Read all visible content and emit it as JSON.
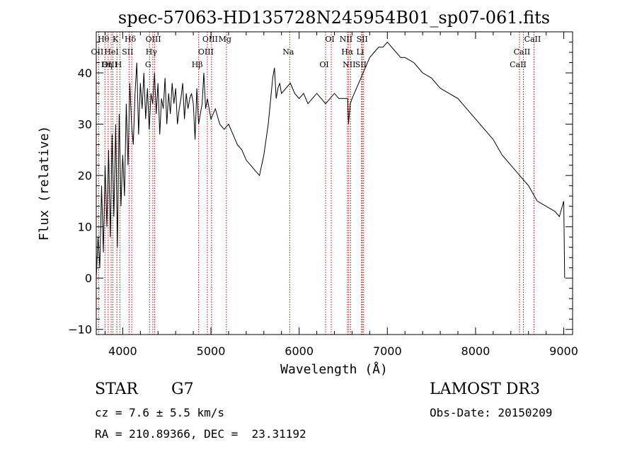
{
  "chart_data": {
    "type": "line",
    "title": "spec-57063-HD135728N245954B01_sp07-061.fits",
    "xlabel": "Wavelength (Å)",
    "ylabel": "Flux (relative)",
    "xlim": [
      3700,
      9100
    ],
    "ylim": [
      -11,
      48
    ],
    "xticks": [
      4000,
      5000,
      6000,
      7000,
      8000,
      9000
    ],
    "yticks": [
      -10,
      0,
      10,
      20,
      30,
      40
    ],
    "grid": false,
    "series": [
      {
        "x": [
          3700,
          3720,
          3740,
          3760,
          3780,
          3800,
          3820,
          3840,
          3860,
          3880,
          3900,
          3920,
          3940,
          3960,
          3980,
          4000,
          4020,
          4040,
          4060,
          4080,
          4100,
          4120,
          4140,
          4160,
          4180,
          4200,
          4220,
          4240,
          4260,
          4280,
          4300,
          4320,
          4340,
          4360,
          4380,
          4400,
          4420,
          4440,
          4460,
          4480,
          4500,
          4520,
          4540,
          4560,
          4580,
          4600,
          4620,
          4640,
          4660,
          4680,
          4700,
          4720,
          4740,
          4760,
          4780,
          4800,
          4820,
          4840,
          4860,
          4880,
          4900,
          4920,
          4940,
          4960,
          4980,
          5000,
          5050,
          5100,
          5150,
          5200,
          5250,
          5300,
          5350,
          5400,
          5450,
          5500,
          5550,
          5600,
          5650,
          5700,
          5720,
          5740,
          5760,
          5780,
          5800,
          5850,
          5900,
          5950,
          6000,
          6050,
          6100,
          6150,
          6200,
          6250,
          6300,
          6350,
          6400,
          6450,
          6500,
          6550,
          6560,
          6580,
          6600,
          6650,
          6700,
          6750,
          6800,
          6850,
          6900,
          6950,
          7000,
          7050,
          7100,
          7150,
          7200,
          7300,
          7400,
          7500,
          7600,
          7700,
          7800,
          7900,
          8000,
          8100,
          8200,
          8300,
          8400,
          8500,
          8600,
          8700,
          8800,
          8900,
          8950,
          9000,
          9010
        ],
        "values": [
          0,
          8,
          2,
          18,
          5,
          22,
          10,
          25,
          8,
          28,
          12,
          30,
          6,
          32,
          14,
          24,
          16,
          34,
          22,
          38,
          30,
          26,
          36,
          42,
          28,
          38,
          33,
          40,
          31,
          37,
          29,
          36,
          34,
          40,
          32,
          38,
          28,
          35,
          33,
          39,
          30,
          36,
          32,
          38,
          34,
          37,
          30,
          33,
          35,
          38,
          31,
          36,
          33,
          35,
          36,
          34,
          27,
          37,
          30,
          32,
          34,
          40,
          33,
          35,
          33,
          31,
          33,
          30,
          29,
          30,
          28,
          26,
          25,
          23,
          22,
          21,
          20,
          24,
          30,
          39,
          41,
          35,
          37,
          38,
          36,
          37,
          38,
          36,
          35,
          36,
          34,
          35,
          36,
          35,
          34,
          35,
          36,
          35,
          35,
          35,
          30,
          34,
          35,
          37,
          39,
          41,
          43,
          44,
          45,
          45,
          46,
          45,
          44,
          43,
          43,
          42,
          40,
          39,
          37,
          36,
          35,
          33,
          31,
          29,
          27,
          24,
          22,
          20,
          18,
          15,
          14,
          13,
          12,
          15,
          0
        ]
      }
    ],
    "annotations": [
      {
        "label": "Hθ",
        "x": 3798
      },
      {
        "label": "OII",
        "x": 3727
      },
      {
        "label": "OIII",
        "x": 3869
      },
      {
        "label": "K",
        "x": 3934
      },
      {
        "label": "HeI",
        "x": 3889
      },
      {
        "label": "Hη",
        "x": 3835
      },
      {
        "label": "Hδ",
        "x": 4102
      },
      {
        "label": "SII",
        "x": 4072
      },
      {
        "label": "H",
        "x": 3968
      },
      {
        "label": "OIII",
        "x": 4363
      },
      {
        "label": "Hγ",
        "x": 4341
      },
      {
        "label": "G",
        "x": 4304
      },
      {
        "label": "OIII",
        "x": 5007
      },
      {
        "label": "OIII",
        "x": 4959
      },
      {
        "label": "Hβ",
        "x": 4861
      },
      {
        "label": "Mg",
        "x": 5175
      },
      {
        "label": "Na",
        "x": 5893
      },
      {
        "label": "OI",
        "x": 6300
      },
      {
        "label": "OI",
        "x": 6364
      },
      {
        "label": "Hα",
        "x": 6563
      },
      {
        "label": "SII",
        "x": 6716
      },
      {
        "label": "NII",
        "x": 6548
      },
      {
        "label": "Li",
        "x": 6708
      },
      {
        "label": "NII",
        "x": 6583
      },
      {
        "label": "SII",
        "x": 6731
      },
      {
        "label": "CaII",
        "x": 8542
      },
      {
        "label": "CaII",
        "x": 8498
      },
      {
        "label": "CaII",
        "x": 8662
      }
    ]
  },
  "info": {
    "class": "STAR",
    "subclass": "G7",
    "survey": "LAMOST DR3",
    "cz": "cz = 7.6 ± 5.5 km/s",
    "obs_date": "Obs-Date: 20150209",
    "coords": "RA = 210.89366, DEC =  23.31192"
  }
}
